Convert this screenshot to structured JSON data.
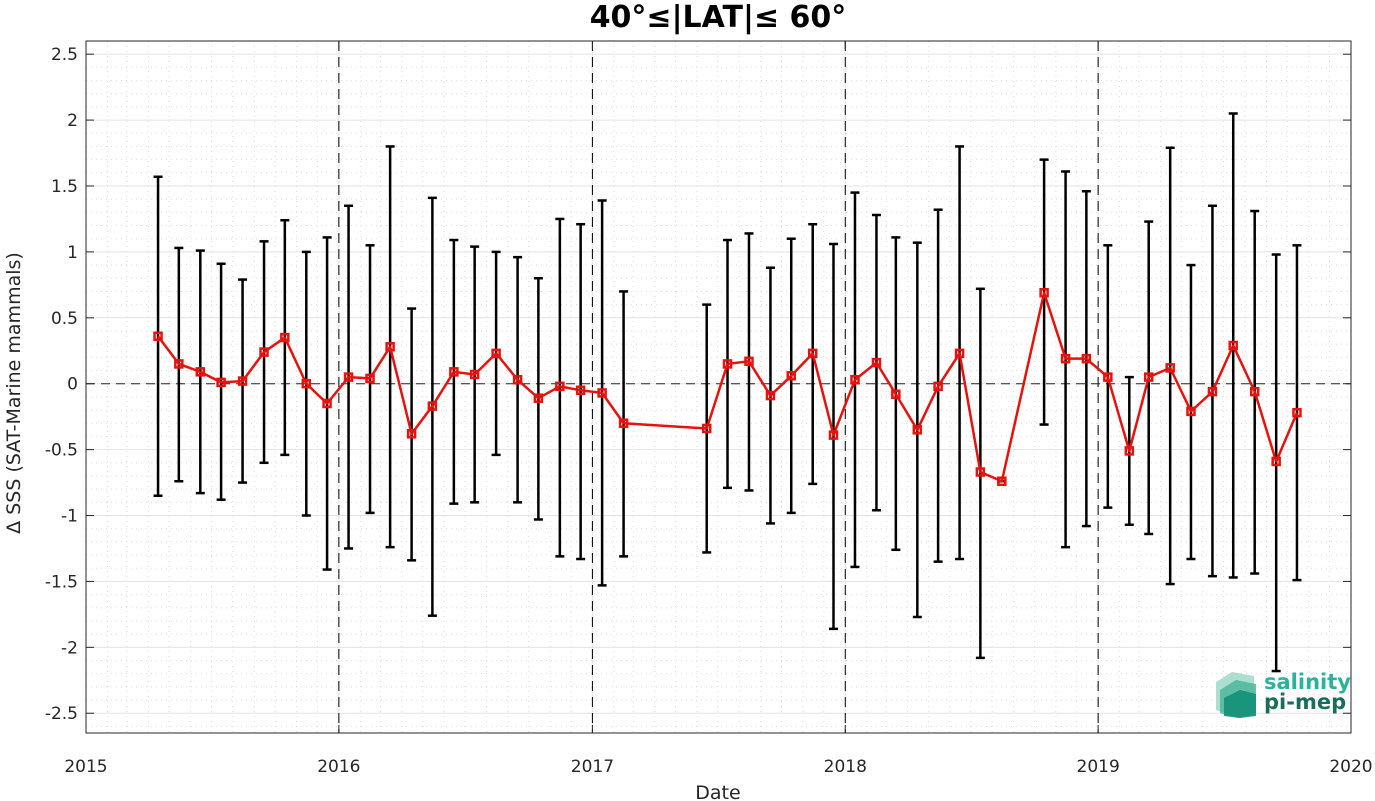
{
  "chart_data": {
    "type": "line",
    "title": "40°≤|LAT|≤ 60°",
    "xlabel": "Date",
    "ylabel": "Δ SSS (SAT-Marine mammals)",
    "xlim": [
      "2015-01-01",
      "2020-01-01"
    ],
    "ylim": [
      -2.65,
      2.6
    ],
    "xticks": [
      "2015",
      "2016",
      "2017",
      "2018",
      "2019",
      "2020"
    ],
    "yticks": [
      "-2.5",
      "-2",
      "-1.5",
      "-1",
      "-0.5",
      "0",
      "0.5",
      "1",
      "1.5",
      "2",
      "2.5"
    ],
    "grid": true,
    "zero_line": 0,
    "year_dividers": [
      "2016",
      "2017",
      "2018",
      "2019"
    ],
    "colors": {
      "series": "#e8120c",
      "errorbar": "#000000",
      "grid": "#d9d9d9"
    },
    "series": [
      {
        "x": [
          "2015-04-15",
          "2015-05-15",
          "2015-06-15",
          "2015-07-15",
          "2015-08-15",
          "2015-09-15",
          "2015-10-15",
          "2015-11-15",
          "2015-12-15",
          "2016-01-15",
          "2016-02-15",
          "2016-03-15",
          "2016-04-15",
          "2016-05-15",
          "2016-06-15",
          "2016-07-15",
          "2016-08-15",
          "2016-09-15",
          "2016-10-15",
          "2016-11-15",
          "2016-12-15",
          "2017-01-15",
          "2017-02-15",
          "2017-06-15",
          "2017-07-15",
          "2017-08-15",
          "2017-09-15",
          "2017-10-15",
          "2017-11-15",
          "2017-12-15",
          "2018-01-15",
          "2018-02-15",
          "2018-03-15",
          "2018-04-15",
          "2018-05-15",
          "2018-06-15",
          "2018-07-15",
          "2018-08-15",
          "2018-10-15",
          "2018-11-15",
          "2018-12-15",
          "2019-01-15",
          "2019-02-15",
          "2019-03-15",
          "2019-04-15",
          "2019-05-15",
          "2019-06-15",
          "2019-07-15",
          "2019-08-15",
          "2019-09-15",
          "2019-10-15"
        ],
        "values": [
          0.36,
          0.15,
          0.09,
          0.01,
          0.02,
          0.24,
          0.35,
          0.0,
          -0.15,
          0.05,
          0.04,
          0.28,
          -0.38,
          -0.17,
          0.09,
          0.07,
          0.23,
          0.03,
          -0.11,
          -0.02,
          -0.05,
          -0.07,
          -0.3,
          -0.34,
          0.15,
          0.17,
          -0.09,
          0.06,
          0.23,
          -0.39,
          0.03,
          0.16,
          -0.08,
          -0.35,
          -0.02,
          0.23,
          -0.67,
          -0.74,
          0.69,
          0.19,
          0.19,
          0.05,
          -0.51,
          0.05,
          0.12,
          -0.21,
          -0.06,
          0.29,
          -0.06,
          -0.59,
          -0.22
        ],
        "err_low": [
          -0.85,
          -0.74,
          -0.83,
          -0.88,
          -0.75,
          -0.6,
          -0.54,
          -1.0,
          -1.41,
          -1.25,
          -0.98,
          -1.24,
          -1.34,
          -1.76,
          -0.91,
          -0.9,
          -0.54,
          -0.9,
          -1.03,
          -1.31,
          -1.33,
          -1.53,
          -1.31,
          -1.28,
          -0.79,
          -0.81,
          -1.06,
          -0.98,
          -0.76,
          -1.86,
          -1.39,
          -0.96,
          -1.26,
          -1.77,
          -1.35,
          -1.33,
          -2.08,
          -0.74,
          -0.31,
          -1.24,
          -1.08,
          -0.94,
          -1.07,
          -1.14,
          -1.52,
          -1.33,
          -1.46,
          -1.47,
          -1.44,
          -2.18,
          -1.49
        ],
        "err_high": [
          1.57,
          1.03,
          1.01,
          0.91,
          0.79,
          1.08,
          1.24,
          1.0,
          1.11,
          1.35,
          1.05,
          1.8,
          0.57,
          1.41,
          1.09,
          1.04,
          1.0,
          0.96,
          0.8,
          1.25,
          1.21,
          1.39,
          0.7,
          0.6,
          1.09,
          1.14,
          0.88,
          1.1,
          1.21,
          1.06,
          1.45,
          1.28,
          1.11,
          1.07,
          1.32,
          1.8,
          0.72,
          -0.74,
          1.7,
          1.61,
          1.46,
          1.05,
          0.05,
          1.23,
          1.79,
          0.9,
          1.35,
          2.05,
          1.31,
          0.98,
          1.05
        ]
      }
    ]
  },
  "logo": {
    "line1": "salinity",
    "line2": "pi-mep"
  }
}
